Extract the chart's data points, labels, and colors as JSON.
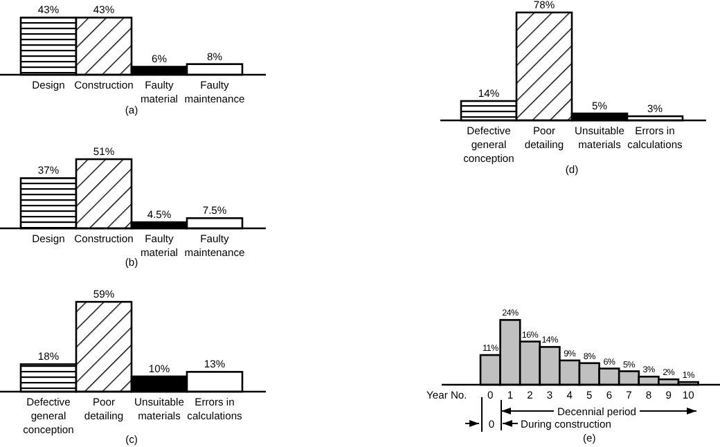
{
  "chart_data": [
    {
      "type": "bar",
      "title": "(a)",
      "categories": [
        "Design",
        "Construction",
        "Faulty material",
        "Faulty maintenance"
      ],
      "values": [
        43,
        43,
        6,
        8
      ],
      "value_labels": [
        "43%",
        "43%",
        "6%",
        "8%"
      ],
      "colors": [
        "#000000",
        "#000000",
        "#000000",
        "#ffffff"
      ]
    },
    {
      "type": "bar",
      "title": "(b)",
      "categories": [
        "Design",
        "Construction",
        "Faulty material",
        "Faulty maintenance"
      ],
      "values": [
        37,
        51,
        4.5,
        7.5
      ],
      "value_labels": [
        "37%",
        "51%",
        "4.5%",
        "7.5%"
      ],
      "colors": [
        "#000000",
        "#000000",
        "#000000",
        "#ffffff"
      ]
    },
    {
      "type": "bar",
      "title": "(c)",
      "categories": [
        "Defective general conception",
        "Poor detailing",
        "Unsuitable materials",
        "Errors in calculations"
      ],
      "values": [
        18,
        59,
        10,
        13
      ],
      "value_labels": [
        "18%",
        "59%",
        "10%",
        "13%"
      ],
      "colors": [
        "#000000",
        "#000000",
        "#000000",
        "#ffffff"
      ]
    },
    {
      "type": "bar",
      "title": "(d)",
      "categories": [
        "Defective general conception",
        "Poor detailing",
        "Unsuitable materials",
        "Errors in calculations"
      ],
      "values": [
        14,
        78,
        5,
        3
      ],
      "value_labels": [
        "14%",
        "78%",
        "5%",
        "3%"
      ],
      "colors": [
        "#000000",
        "#000000",
        "#000000",
        "#ffffff"
      ]
    },
    {
      "type": "bar",
      "title": "(e)",
      "xlabel": "Year No.",
      "categories": [
        "0",
        "1",
        "2",
        "3",
        "4",
        "5",
        "6",
        "7",
        "8",
        "9",
        "10"
      ],
      "values": [
        11,
        24,
        16,
        14,
        9,
        8,
        6,
        5,
        3,
        2,
        1
      ],
      "value_labels": [
        "11%",
        "24%",
        "16%",
        "14%",
        "9%",
        "8%",
        "6%",
        "5%",
        "3%",
        "2%",
        "1%"
      ],
      "colors": [
        "#c0c0c0",
        "#c0c0c0",
        "#c0c0c0",
        "#c0c0c0",
        "#c0c0c0",
        "#c0c0c0",
        "#c0c0c0",
        "#c0c0c0",
        "#c0c0c0",
        "#c0c0c0",
        "#c0c0c0"
      ],
      "annotations": [
        "Decennial period",
        "0",
        "During construction"
      ]
    }
  ]
}
